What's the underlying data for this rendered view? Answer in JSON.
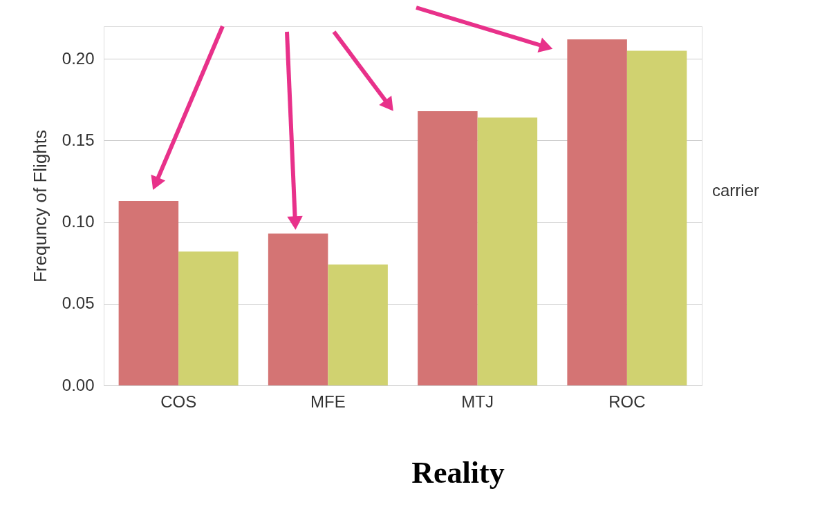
{
  "chart_data": {
    "type": "bar",
    "ylabel": "Frequncy of Flights",
    "legend_title": "carrier",
    "categories": [
      "COS",
      "MFE",
      "MTJ",
      "ROC"
    ],
    "series": [
      {
        "color": "#d47474",
        "values": [
          0.113,
          0.093,
          0.168,
          0.212
        ]
      },
      {
        "color": "#d0d270",
        "values": [
          0.082,
          0.074,
          0.164,
          0.205
        ]
      }
    ],
    "ylim": [
      0,
      0.22
    ],
    "yticks": [
      {
        "value": 0,
        "label": "0.00"
      },
      0.05,
      {
        "value": 0.1,
        "label": "0.10"
      },
      0.15,
      {
        "value": 0.2,
        "label": "0.20"
      }
    ],
    "grid": "y",
    "annotations": [
      "Reality"
    ]
  }
}
